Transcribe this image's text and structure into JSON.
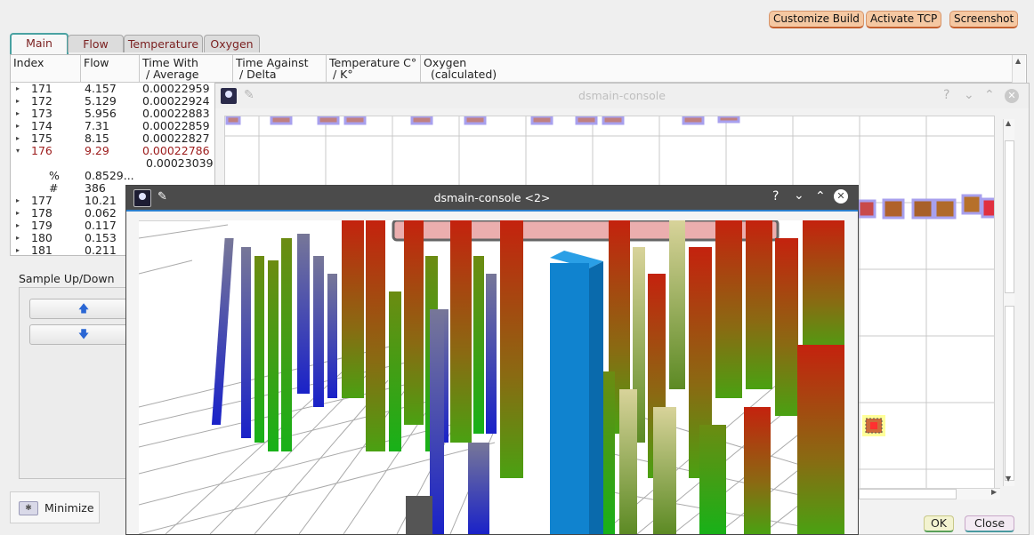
{
  "toolbar": {
    "customize_build": "Customize Build",
    "activate_tcp": "Activate TCP",
    "screenshot": "Screenshot"
  },
  "tabs": [
    "Main",
    "Flow",
    "Temperature",
    "Oxygen"
  ],
  "table": {
    "headers": [
      "Index",
      "Flow",
      "Time With\n / Average",
      "Time Against\n / Delta",
      "Temperature C°\n / K°",
      "Oxygen\n  (calculated)"
    ],
    "rows": [
      {
        "index": "171",
        "flow": "4.157",
        "time": "0.00022959"
      },
      {
        "index": "172",
        "flow": "5.129",
        "time": "0.00022924"
      },
      {
        "index": "173",
        "flow": "5.956",
        "time": "0.00022883"
      },
      {
        "index": "174",
        "flow": "7.31",
        "time": "0.00022859"
      },
      {
        "index": "175",
        "flow": "8.15",
        "time": "0.00022827"
      },
      {
        "index": "176",
        "flow": "9.29",
        "time": "0.00022786"
      }
    ],
    "expanded": {
      "average": "0.00023039",
      "percent_label": "%",
      "percent_value": "0.8529...",
      "count_label": "#",
      "count_value": "386"
    },
    "rows_after": [
      {
        "index": "177",
        "flow": "10.21"
      },
      {
        "index": "178",
        "flow": "0.062"
      },
      {
        "index": "179",
        "flow": "0.117"
      },
      {
        "index": "180",
        "flow": "0.153"
      },
      {
        "index": "181",
        "flow": "0.211"
      }
    ]
  },
  "sample": {
    "title": "Sample Up/Down",
    "up_icon": "arrow-up-icon",
    "down_icon": "arrow-down-icon"
  },
  "minimize": {
    "label": "Minimize",
    "icon": "minimize-icon"
  },
  "console1": {
    "title": "dsmain-console",
    "ok": "OK",
    "close": "Close"
  },
  "console2": {
    "title": "dsmain-console <2>"
  },
  "window_controls": {
    "help": "?",
    "shade": "⌄",
    "maximize": "⌃",
    "close": "✕",
    "pin": "pin-icon"
  },
  "colors": {
    "accent_tab": "#4aa2a2",
    "row_selected": "#9c1b1b",
    "button_orange": "#f5c8a2",
    "bar_blue": "#1083cf"
  }
}
